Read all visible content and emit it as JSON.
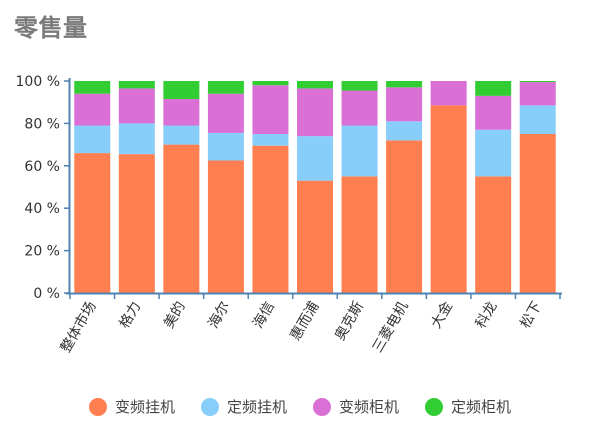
{
  "chart_data": {
    "type": "bar",
    "stacked": true,
    "title": "零售量",
    "categories": [
      "整体市场",
      "格力",
      "美的",
      "海尔",
      "海信",
      "惠而浦",
      "奥克斯",
      "三菱电机",
      "大金",
      "科龙",
      "松下"
    ],
    "series": [
      {
        "name": "变频挂机",
        "color": "#ff7f50",
        "values": [
          66,
          65.5,
          70,
          62.5,
          69.5,
          53,
          55,
          72,
          88.5,
          55,
          75
        ]
      },
      {
        "name": "定频挂机",
        "color": "#87cefa",
        "values": [
          13,
          14.5,
          9,
          13,
          5.5,
          21,
          24,
          9,
          0,
          22,
          13.5
        ]
      },
      {
        "name": "变频柜机",
        "color": "#da70d6",
        "values": [
          15,
          16.5,
          12.5,
          18.5,
          23,
          22.5,
          16.5,
          16,
          11.5,
          16,
          11
        ]
      },
      {
        "name": "定频柜机",
        "color": "#32cd32",
        "values": [
          6,
          3.5,
          8.5,
          6,
          2,
          3.5,
          4.5,
          3,
          0,
          7,
          0.5
        ]
      }
    ],
    "ylim": [
      0,
      100
    ],
    "yticks": [
      0,
      20,
      40,
      60,
      80,
      100
    ],
    "ytick_labels": [
      "0 %",
      "20 %",
      "40 %",
      "60 %",
      "80 %",
      "100 %"
    ],
    "xlabel": "",
    "ylabel": "",
    "grid": false,
    "legend_position": "bottom",
    "axis_color": "#4f83b3"
  }
}
